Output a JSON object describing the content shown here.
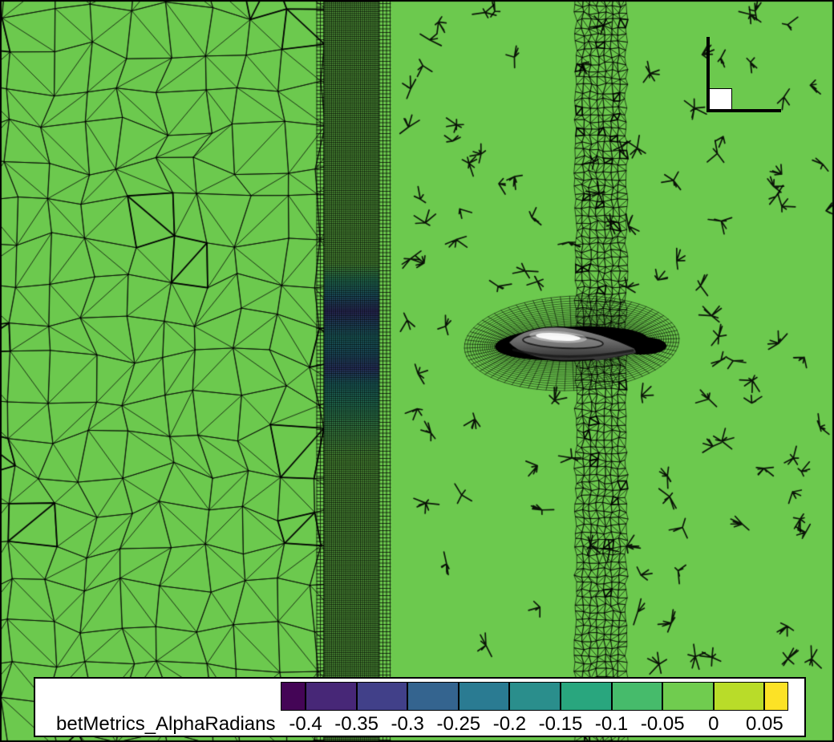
{
  "legend": {
    "label": "betMetrics_AlphaRadians",
    "ticks": [
      "-0.4",
      "-0.35",
      "-0.3",
      "-0.25",
      "-0.2",
      "-0.15",
      "-0.1",
      "-0.05",
      "0",
      "0.05"
    ],
    "band_colors": [
      "#440556",
      "#472777",
      "#414089",
      "#34648f",
      "#2a7b92",
      "#2a8e8c",
      "#29a67e",
      "#46bb6b",
      "#70cc4f",
      "#b9dc29",
      "#fce226"
    ]
  },
  "chart_data": {
    "type": "heatmap",
    "title": "",
    "field": "betMetrics_AlphaRadians",
    "colorbar": {
      "orientation": "horizontal",
      "position": "bottom-left",
      "ticks": [
        -0.4,
        -0.35,
        -0.3,
        -0.25,
        -0.2,
        -0.15,
        -0.1,
        -0.05,
        0,
        0.05
      ],
      "range_shown": [
        -0.425,
        0.075
      ],
      "band_colors": [
        "#440556",
        "#472777",
        "#414089",
        "#34648f",
        "#2a7b92",
        "#2a8e8c",
        "#29a67e",
        "#46bb6b",
        "#70cc4f",
        "#b9dc29",
        "#fce226"
      ]
    },
    "scene": {
      "background_field_color": "#6cc94e",
      "background_field_value_range": [
        -0.05,
        0
      ],
      "mesh_edge_color": "#000000",
      "elements": [
        "coarse unstructured triangular mesh on left third",
        "fine unstructured triangular mesh on right two-thirds",
        "vertical refined structured quad band near x=400-486 where AlphaRadians dips toward -0.3 at airfoil height",
        "structured O-grid fan around dark gray airfoil near center-right",
        "white square with L-shaped thick black lines at top right"
      ],
      "band_gradient": [
        {
          "at": 0.0,
          "c": "#6cc94e"
        },
        {
          "at": 0.355,
          "c": "#6cc94e"
        },
        {
          "at": 0.378,
          "c": "#35a77c"
        },
        {
          "at": 0.398,
          "c": "#2d7d92"
        },
        {
          "at": 0.42,
          "c": "#414089"
        },
        {
          "at": 0.435,
          "c": "#34648f"
        },
        {
          "at": 0.455,
          "c": "#2a8e8c"
        },
        {
          "at": 0.476,
          "c": "#2d7992"
        },
        {
          "at": 0.497,
          "c": "#3f4f96"
        },
        {
          "at": 0.517,
          "c": "#2a8e8c"
        },
        {
          "at": 0.545,
          "c": "#35a77c"
        },
        {
          "at": 0.578,
          "c": "#52bb63"
        },
        {
          "at": 0.615,
          "c": "#6cc94e"
        },
        {
          "at": 1.0,
          "c": "#6cc94e"
        }
      ],
      "airfoil": {
        "fill_top": "#909090",
        "fill_bottom": "#262626",
        "highlight": "#ffffff"
      }
    }
  }
}
